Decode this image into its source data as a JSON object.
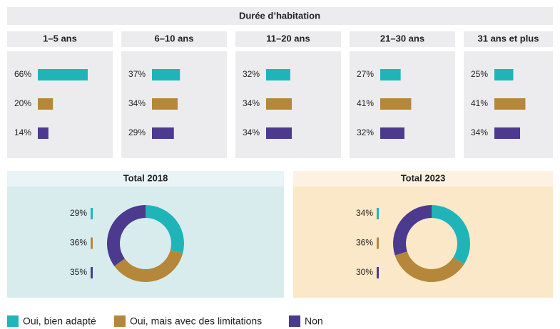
{
  "header": "Durée d’habitation",
  "legend": {
    "names": [
      "Oui, bien adapté",
      "Oui, mais avec des limitations",
      "Non"
    ],
    "colors": [
      "#1fb5b8",
      "#b5873a",
      "#4b3a8e"
    ]
  },
  "chart_data": [
    {
      "type": "bar",
      "title": "1–5 ans",
      "values": [
        66,
        20,
        14
      ],
      "value_labels": [
        "66%",
        "20%",
        "14%"
      ]
    },
    {
      "type": "bar",
      "title": "6–10 ans",
      "values": [
        37,
        34,
        29
      ],
      "value_labels": [
        "37%",
        "34%",
        "29%"
      ]
    },
    {
      "type": "bar",
      "title": "11–20 ans",
      "values": [
        32,
        34,
        34
      ],
      "value_labels": [
        "32%",
        "34%",
        "34%"
      ]
    },
    {
      "type": "bar",
      "title": "21–30 ans",
      "values": [
        27,
        41,
        32
      ],
      "value_labels": [
        "27%",
        "41%",
        "32%"
      ]
    },
    {
      "type": "bar",
      "title": "31 ans et plus",
      "values": [
        25,
        41,
        34
      ],
      "value_labels": [
        "25%",
        "41%",
        "34%"
      ]
    },
    {
      "type": "pie",
      "donut": true,
      "title": "Total 2018",
      "background": "#d8ecee",
      "values": [
        29,
        36,
        35
      ],
      "value_labels": [
        "29%",
        "36%",
        "35%"
      ]
    },
    {
      "type": "pie",
      "donut": true,
      "title": "Total 2023",
      "background": "#fbe8c8",
      "values": [
        34,
        36,
        30
      ],
      "value_labels": [
        "34%",
        "36%",
        "30%"
      ]
    }
  ]
}
